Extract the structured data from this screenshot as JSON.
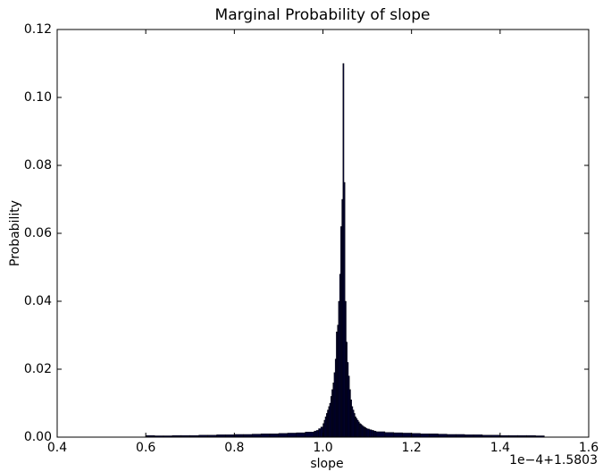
{
  "chart_data": {
    "type": "histogram",
    "title": "Marginal Probability of slope",
    "x_label": "slope",
    "y_label": "Probability",
    "offset_text": "1e−4+1.5803",
    "color": "#000033",
    "edgecolor": "#000000",
    "bins": [
      0.6,
      0.62,
      0.64,
      0.66,
      0.68,
      0.7,
      0.72,
      0.74,
      0.76,
      0.78,
      0.8,
      0.82,
      0.84,
      0.86,
      0.88,
      0.9,
      0.92,
      0.94,
      0.96,
      0.98,
      0.985,
      0.99,
      0.995,
      1.0,
      1.0025,
      1.005,
      1.0075,
      1.01,
      1.0125,
      1.015,
      1.0175,
      1.02,
      1.0225,
      1.025,
      1.0275,
      1.03,
      1.0325,
      1.035,
      1.0375,
      1.04,
      1.0425,
      1.045,
      1.0475,
      1.05,
      1.0525,
      1.055,
      1.0575,
      1.06,
      1.0625,
      1.065,
      1.0675,
      1.07,
      1.0725,
      1.075,
      1.0775,
      1.08,
      1.0825,
      1.085,
      1.0875,
      1.09,
      1.0925,
      1.095,
      1.0975,
      1.1,
      1.105,
      1.11,
      1.115,
      1.12,
      1.14,
      1.16,
      1.18,
      1.2,
      1.22,
      1.24,
      1.26,
      1.28,
      1.3,
      1.32,
      1.34,
      1.36,
      1.38,
      1.4,
      1.42,
      1.44,
      1.46,
      1.48,
      1.5
    ],
    "values": [
      0.0005,
      0.0004,
      0.0004,
      0.0005,
      0.0005,
      0.0005,
      0.0006,
      0.0006,
      0.0007,
      0.0007,
      0.0008,
      0.0008,
      0.0009,
      0.001,
      0.001,
      0.0011,
      0.0012,
      0.0013,
      0.0015,
      0.0018,
      0.002,
      0.0025,
      0.003,
      0.004,
      0.005,
      0.006,
      0.007,
      0.008,
      0.009,
      0.01,
      0.012,
      0.014,
      0.016,
      0.019,
      0.023,
      0.031,
      0.033,
      0.04,
      0.048,
      0.062,
      0.07,
      0.11,
      0.075,
      0.04,
      0.028,
      0.022,
      0.018,
      0.014,
      0.011,
      0.009,
      0.008,
      0.007,
      0.006,
      0.0055,
      0.005,
      0.0045,
      0.004,
      0.0038,
      0.0035,
      0.0032,
      0.003,
      0.0028,
      0.0026,
      0.0024,
      0.0022,
      0.002,
      0.0018,
      0.0016,
      0.0014,
      0.0013,
      0.0012,
      0.0011,
      0.001,
      0.001,
      0.0009,
      0.0008,
      0.0008,
      0.0007,
      0.0007,
      0.0006,
      0.0006,
      0.0005,
      0.0005,
      0.0005,
      0.0005,
      0.0004
    ],
    "xlim": [
      0.4,
      1.6
    ],
    "xticks": [
      0.4,
      0.6,
      0.8,
      {
        "value": 1,
        "label": "1.0"
      },
      1.2,
      1.4,
      1.6
    ],
    "ylim": [
      0,
      0.12
    ],
    "yticks": [
      {
        "value": 0,
        "label": "0.00"
      },
      0.02,
      0.04,
      0.06,
      0.08,
      {
        "value": 0.1,
        "label": "0.10"
      },
      0.12
    ]
  }
}
